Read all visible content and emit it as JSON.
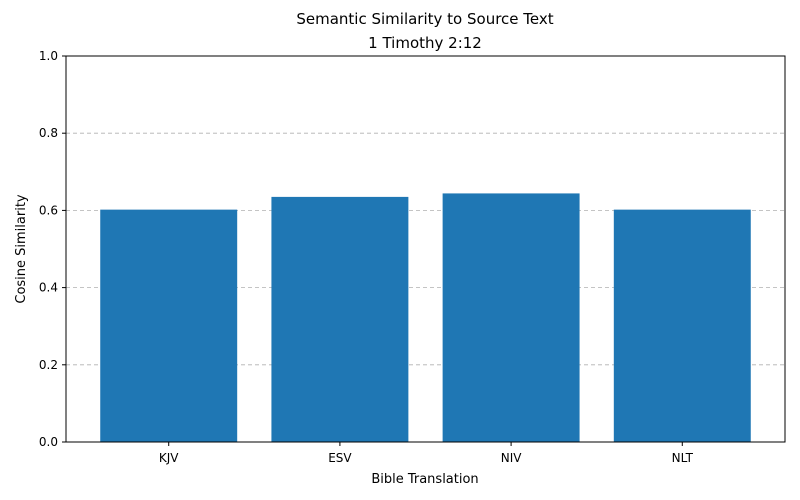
{
  "chart_data": {
    "type": "bar",
    "title": "Semantic Similarity to Source Text",
    "subtitle": "1 Timothy 2:12",
    "xlabel": "Bible Translation",
    "ylabel": "Cosine Similarity",
    "categories": [
      "KJV",
      "ESV",
      "NIV",
      "NLT"
    ],
    "values": [
      0.602,
      0.635,
      0.644,
      0.602
    ],
    "ylim": [
      0,
      1.0
    ],
    "yticks": [
      "0.0",
      "0.2",
      "0.4",
      "0.6",
      "0.8",
      "1.0"
    ],
    "grid": "y-dashed",
    "legend": "none",
    "colors": {
      "bar": "#1f77b4",
      "grid": "#b0b0b0",
      "axis": "#000000"
    }
  }
}
